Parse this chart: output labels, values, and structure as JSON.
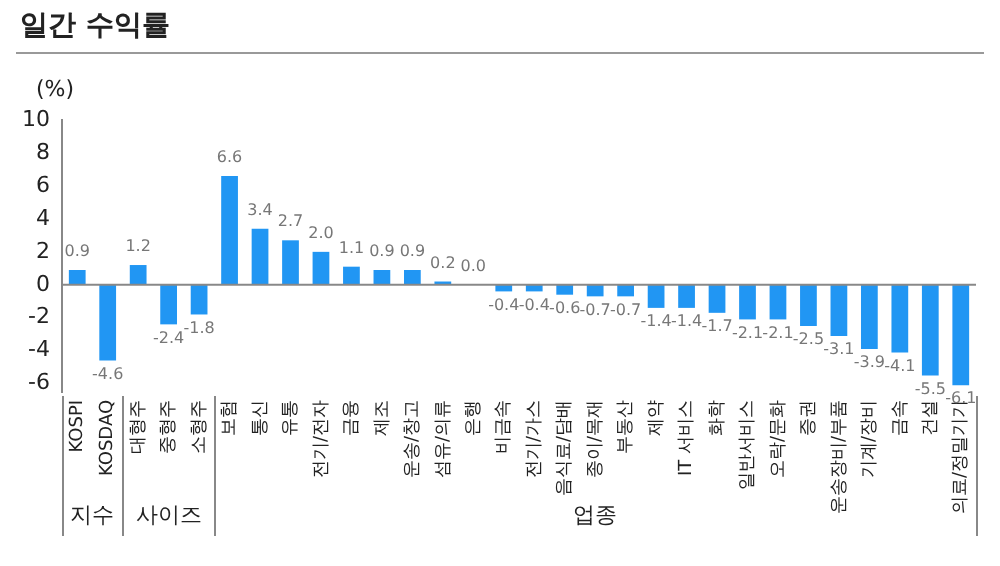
{
  "chart_data": {
    "type": "bar",
    "title": "일간 수익률",
    "ylabel": "(%)",
    "categories": [
      "KOSPI",
      "KOSDAQ",
      "대형주",
      "중형주",
      "소형주",
      "보험",
      "통신",
      "유통",
      "전기/전자",
      "금융",
      "제조",
      "운송/창고",
      "섬유/의류",
      "은행",
      "비금속",
      "전기/가스",
      "음식료/담배",
      "종이/목재",
      "부동산",
      "제약",
      "IT 서비스",
      "화학",
      "일반서비스",
      "오락/문화",
      "증권",
      "운송장비/부품",
      "기계/장비",
      "금속",
      "건설",
      "의료/정밀기기"
    ],
    "values": [
      0.9,
      -4.6,
      1.2,
      -2.4,
      -1.8,
      6.6,
      3.4,
      2.7,
      2.0,
      1.1,
      0.9,
      0.9,
      0.2,
      0.0,
      -0.4,
      -0.4,
      -0.6,
      -0.7,
      -0.7,
      -1.4,
      -1.4,
      -1.7,
      -2.1,
      -2.1,
      -2.5,
      -3.1,
      -3.9,
      -4.1,
      -5.5,
      -6.1
    ],
    "color": "#2196f3",
    "value_labels": [
      "0.9",
      "-4.6",
      "1.2",
      "-2.4",
      "-1.8",
      "6.6",
      "3.4",
      "2.7",
      "2.0",
      "1.1",
      "0.9",
      "0.9",
      "0.2",
      "0.0",
      "-0.4",
      "-0.4",
      "-0.6",
      "-0.7",
      "-0.7",
      "-1.4",
      "-1.4",
      "-1.7",
      "-2.1",
      "-2.1",
      "-2.5",
      "-3.1",
      "-3.9",
      "-4.1",
      "-5.5",
      "-6.1"
    ],
    "ylim": [
      -6.5,
      10
    ],
    "yticks": [
      -6,
      -4,
      -2,
      0,
      2,
      4,
      6,
      8,
      10
    ],
    "grid": false,
    "legend": false,
    "ref_lines": [
      {
        "axis": "y",
        "value": 0,
        "color": "#888888"
      }
    ],
    "annotations": [
      "지수",
      "사이즈",
      "업종"
    ]
  }
}
